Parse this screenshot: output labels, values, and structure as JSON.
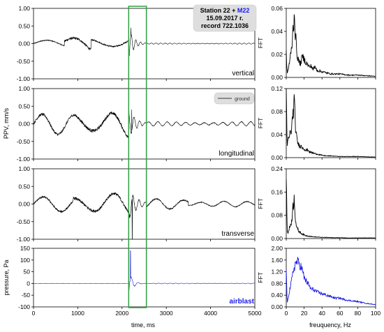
{
  "info_box": {
    "line1_prefix": "Station 22 + ",
    "line1_highlight": "M22",
    "line2": "15.09.2017 r.",
    "line3": "record 722.1036",
    "highlight_color": "#1a1ae6"
  },
  "legend": {
    "label": "ground"
  },
  "shared_axes": {
    "time_xlabel": "time, ms",
    "time_xticks": [
      "0",
      "1000",
      "2000",
      "3000",
      "4000",
      "5000"
    ],
    "freq_xlabel": "freuquency, Hz",
    "freq_xticks": [
      "0",
      "20",
      "40",
      "60",
      "80",
      "100"
    ],
    "ppv_ylabel": "PPV, mm/s",
    "pressure_ylabel": "pressure, Pa",
    "fft_ylabel": "FFT"
  },
  "highlight_window": {
    "x_start_ms": 2150,
    "x_end_ms": 2550,
    "color": "#2ea043"
  },
  "colors": {
    "ground": "#000000",
    "airblast": "#1a1ae6",
    "airblast_label": "#1a1ae6"
  },
  "chart_data": [
    {
      "id": "vertical",
      "type": "line",
      "label": "vertical",
      "xlim": [
        0,
        5000
      ],
      "ylim": [
        -1.0,
        1.0
      ],
      "yticks": [
        "1.00",
        "0.50",
        "0.00",
        "-0.50",
        "-1.00"
      ],
      "series": [
        {
          "kind": "waveform",
          "segments": [
            {
              "t0": 0,
              "t1": 700,
              "amp": 0.1,
              "f": 0.0055,
              "decay": 0
            },
            {
              "t0": 700,
              "t1": 1300,
              "amp": 0.28,
              "f": 0.006,
              "decay": 0
            },
            {
              "t0": 1300,
              "t1": 2150,
              "amp": 0.16,
              "f": 0.0065,
              "decay": 0
            },
            {
              "t0": 2150,
              "t1": 2550,
              "amp": 0.4,
              "f": 0.06,
              "decay": 0.008
            },
            {
              "t0": 2550,
              "t1": 5000,
              "amp": 0.015,
              "f": 0.06,
              "decay": 0
            }
          ],
          "spike": {
            "t": 2200,
            "value": 0.45
          }
        }
      ]
    },
    {
      "id": "longitudinal",
      "type": "line",
      "label": "longitudinal",
      "xlim": [
        0,
        5000
      ],
      "ylim": [
        -1.0,
        1.0
      ],
      "yticks": [
        "1.00",
        "0.50",
        "0.00",
        "-0.50",
        "-1.00"
      ],
      "series": [
        {
          "kind": "waveform",
          "segments": [
            {
              "t0": 0,
              "t1": 1000,
              "amp": 0.3,
              "f": 0.0085,
              "decay": 0
            },
            {
              "t0": 1000,
              "t1": 2150,
              "amp": 0.38,
              "f": 0.0075,
              "decay": 0
            },
            {
              "t0": 2150,
              "t1": 2550,
              "amp": 0.38,
              "f": 0.05,
              "decay": 0.006
            },
            {
              "t0": 2550,
              "t1": 5000,
              "amp": 0.06,
              "f": 0.03,
              "decay": 0
            }
          ],
          "spike": {
            "t": 2220,
            "value": 0.4
          }
        }
      ]
    },
    {
      "id": "transverse",
      "type": "line",
      "label": "transverse",
      "xlim": [
        0,
        5000
      ],
      "ylim": [
        -1.0,
        1.0
      ],
      "yticks": [
        "1.00",
        "0.50",
        "0.00",
        "-0.50",
        "-1.00"
      ],
      "series": [
        {
          "kind": "waveform",
          "segments": [
            {
              "t0": 0,
              "t1": 900,
              "amp": 0.22,
              "f": 0.0075,
              "decay": 0
            },
            {
              "t0": 900,
              "t1": 2150,
              "amp": 0.32,
              "f": 0.007,
              "decay": 0
            },
            {
              "t0": 2150,
              "t1": 2550,
              "amp": 0.4,
              "f": 0.045,
              "decay": 0.005
            },
            {
              "t0": 2550,
              "t1": 3500,
              "amp": 0.15,
              "f": 0.01,
              "decay": 0
            },
            {
              "t0": 3500,
              "t1": 5000,
              "amp": 0.08,
              "f": 0.012,
              "decay": 0
            }
          ],
          "spike": {
            "t": 2230,
            "value": -1.0
          }
        }
      ]
    },
    {
      "id": "airblast",
      "type": "line",
      "label": "airblast",
      "xlim": [
        0,
        5000
      ],
      "ylim": [
        -100,
        150
      ],
      "yticks": [
        "150",
        "100",
        "50",
        "0",
        "-50",
        "-100"
      ],
      "series": [
        {
          "kind": "waveform",
          "segments": [
            {
              "t0": 0,
              "t1": 2150,
              "amp": 0.5,
              "f": 0.05,
              "decay": 0
            },
            {
              "t0": 2150,
              "t1": 2700,
              "amp": 55,
              "f": 0.04,
              "decay": 0.012
            },
            {
              "t0": 2700,
              "t1": 5000,
              "amp": 1.5,
              "f": 0.05,
              "decay": 0
            }
          ],
          "spike": {
            "t": 2190,
            "value": 140
          }
        }
      ]
    },
    {
      "id": "fft_vertical",
      "type": "line",
      "xlim": [
        0,
        100
      ],
      "ylim": [
        0,
        0.06
      ],
      "yticks": [
        "0.06",
        "0.04",
        "0.02",
        "0.00"
      ],
      "series": [
        {
          "kind": "spectrum",
          "x": [
            0,
            1,
            2,
            4,
            6,
            8,
            9,
            10,
            11,
            12,
            14,
            16,
            18,
            20,
            22,
            24,
            26,
            28,
            30,
            32,
            35,
            40,
            45,
            50,
            60,
            70,
            80,
            90,
            100
          ],
          "y": [
            0.02,
            0.004,
            0.006,
            0.015,
            0.025,
            0.045,
            0.058,
            0.04,
            0.03,
            0.02,
            0.014,
            0.012,
            0.018,
            0.016,
            0.013,
            0.011,
            0.009,
            0.01,
            0.007,
            0.009,
            0.006,
            0.005,
            0.004,
            0.003,
            0.003,
            0.002,
            0.002,
            0.0015,
            0.001
          ],
          "noise": 0.2
        }
      ]
    },
    {
      "id": "fft_longitudinal",
      "type": "line",
      "xlim": [
        0,
        100
      ],
      "ylim": [
        0,
        0.12
      ],
      "yticks": [
        "0.12",
        "0.08",
        "0.04",
        "0.00"
      ],
      "series": [
        {
          "kind": "spectrum",
          "x": [
            0,
            1,
            2,
            4,
            6,
            8,
            9,
            10,
            11,
            12,
            14,
            16,
            18,
            20,
            22,
            24,
            26,
            28,
            30,
            32,
            35,
            40,
            45,
            50,
            60,
            70,
            80,
            90,
            100
          ],
          "y": [
            0.105,
            0.02,
            0.03,
            0.04,
            0.05,
            0.085,
            0.098,
            0.06,
            0.045,
            0.03,
            0.022,
            0.02,
            0.018,
            0.016,
            0.012,
            0.014,
            0.01,
            0.009,
            0.008,
            0.007,
            0.006,
            0.004,
            0.003,
            0.003,
            0.002,
            0.002,
            0.002,
            0.0015,
            0.001
          ],
          "noise": 0.2
        }
      ]
    },
    {
      "id": "fft_transverse",
      "type": "line",
      "xlim": [
        0,
        100
      ],
      "ylim": [
        0,
        0.24
      ],
      "yticks": [
        "0.24",
        "0.16",
        "0.08",
        "0.00"
      ],
      "series": [
        {
          "kind": "spectrum",
          "x": [
            0,
            1,
            2,
            4,
            6,
            8,
            9,
            10,
            11,
            12,
            14,
            16,
            18,
            20,
            22,
            24,
            26,
            28,
            30,
            35,
            40,
            45,
            50,
            60,
            70,
            80,
            90,
            100
          ],
          "y": [
            0.225,
            0.03,
            0.02,
            0.04,
            0.06,
            0.12,
            0.145,
            0.08,
            0.05,
            0.035,
            0.025,
            0.02,
            0.016,
            0.012,
            0.01,
            0.009,
            0.008,
            0.007,
            0.006,
            0.005,
            0.004,
            0.004,
            0.003,
            0.003,
            0.002,
            0.002,
            0.002,
            0.002
          ],
          "noise": 0.2
        }
      ]
    },
    {
      "id": "fft_airblast",
      "type": "line",
      "xlim": [
        0,
        100
      ],
      "ylim": [
        0,
        2.0
      ],
      "yticks": [
        "2.00",
        "1.60",
        "1.20",
        "0.80",
        "0.40",
        "0.00"
      ],
      "series": [
        {
          "kind": "spectrum",
          "x": [
            0,
            1,
            2,
            4,
            6,
            8,
            10,
            12,
            14,
            16,
            18,
            20,
            22,
            24,
            26,
            28,
            30,
            35,
            40,
            45,
            50,
            55,
            60,
            65,
            70,
            75,
            80,
            85,
            90,
            95,
            100
          ],
          "y": [
            1.4,
            0.1,
            0.3,
            0.6,
            0.9,
            1.25,
            1.45,
            1.55,
            1.5,
            1.4,
            1.25,
            1.0,
            0.9,
            0.8,
            0.7,
            0.6,
            0.6,
            0.5,
            0.45,
            0.4,
            0.35,
            0.3,
            0.3,
            0.25,
            0.22,
            0.2,
            0.18,
            0.15,
            0.12,
            0.1,
            0.08
          ],
          "noise": 0.12
        }
      ]
    }
  ]
}
